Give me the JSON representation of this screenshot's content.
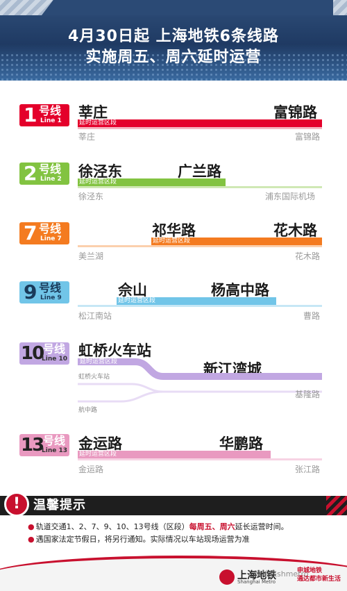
{
  "header": {
    "title_line1": "4月30日起  上海地铁6条线路",
    "title_line2": "实施周五、周六延时运营"
  },
  "segment_label": "延时运营区段",
  "lines": [
    {
      "num": "1",
      "hx": "号线",
      "en": "Line 1",
      "color": "#e4002b",
      "from": "莘庄",
      "to": "富锦路",
      "term_start": "莘庄",
      "term_end": "富锦路"
    },
    {
      "num": "2",
      "hx": "号线",
      "en": "Line 2",
      "color": "#82c341",
      "from": "徐泾东",
      "to": "广兰路",
      "term_start": "徐泾东",
      "term_end": "浦东国际机场"
    },
    {
      "num": "7",
      "hx": "号线",
      "en": "Line 7",
      "color": "#f47b20",
      "from": "祁华路",
      "to": "花木路",
      "term_start": "美兰湖",
      "term_end": "花木路"
    },
    {
      "num": "9",
      "hx": "号线",
      "en": "Line 9",
      "color": "#71c5e8",
      "from": "佘山",
      "to": "杨高中路",
      "term_start": "松江南站",
      "term_end": "曹路"
    },
    {
      "num": "10",
      "hx": "号线",
      "en": "Line 10",
      "color": "#c1a7e2",
      "from": "虹桥火车站",
      "to": "新江湾城",
      "branch_a": "虹桥火车站",
      "branch_b": "航中路",
      "term_end": "基隆路"
    },
    {
      "num": "13",
      "hx": "号线",
      "en": "Line 13",
      "color": "#e999c0",
      "from": "金运路",
      "to": "华鹏路",
      "term_start": "金运路",
      "term_end": "张江路"
    }
  ],
  "tips": {
    "title": "温馨提示",
    "item1_prefix": "轨道交通1、2、7、9、10、13号线（区段）",
    "item1_highlight": "每周五、周六",
    "item1_suffix": "延长运营时间。",
    "item2": "遇国家法定节假日，将另行通知。实际情况以车站现场运营为准"
  },
  "footer": {
    "logo_cn": "上海地铁",
    "logo_en": "Shanghai Metro",
    "brand1": "申城地铁",
    "brand2": "通达都市新生活",
    "watermark": "海地铁shmetro"
  },
  "colors": {
    "accent": "#c8102e",
    "header": "#1f3a63"
  }
}
